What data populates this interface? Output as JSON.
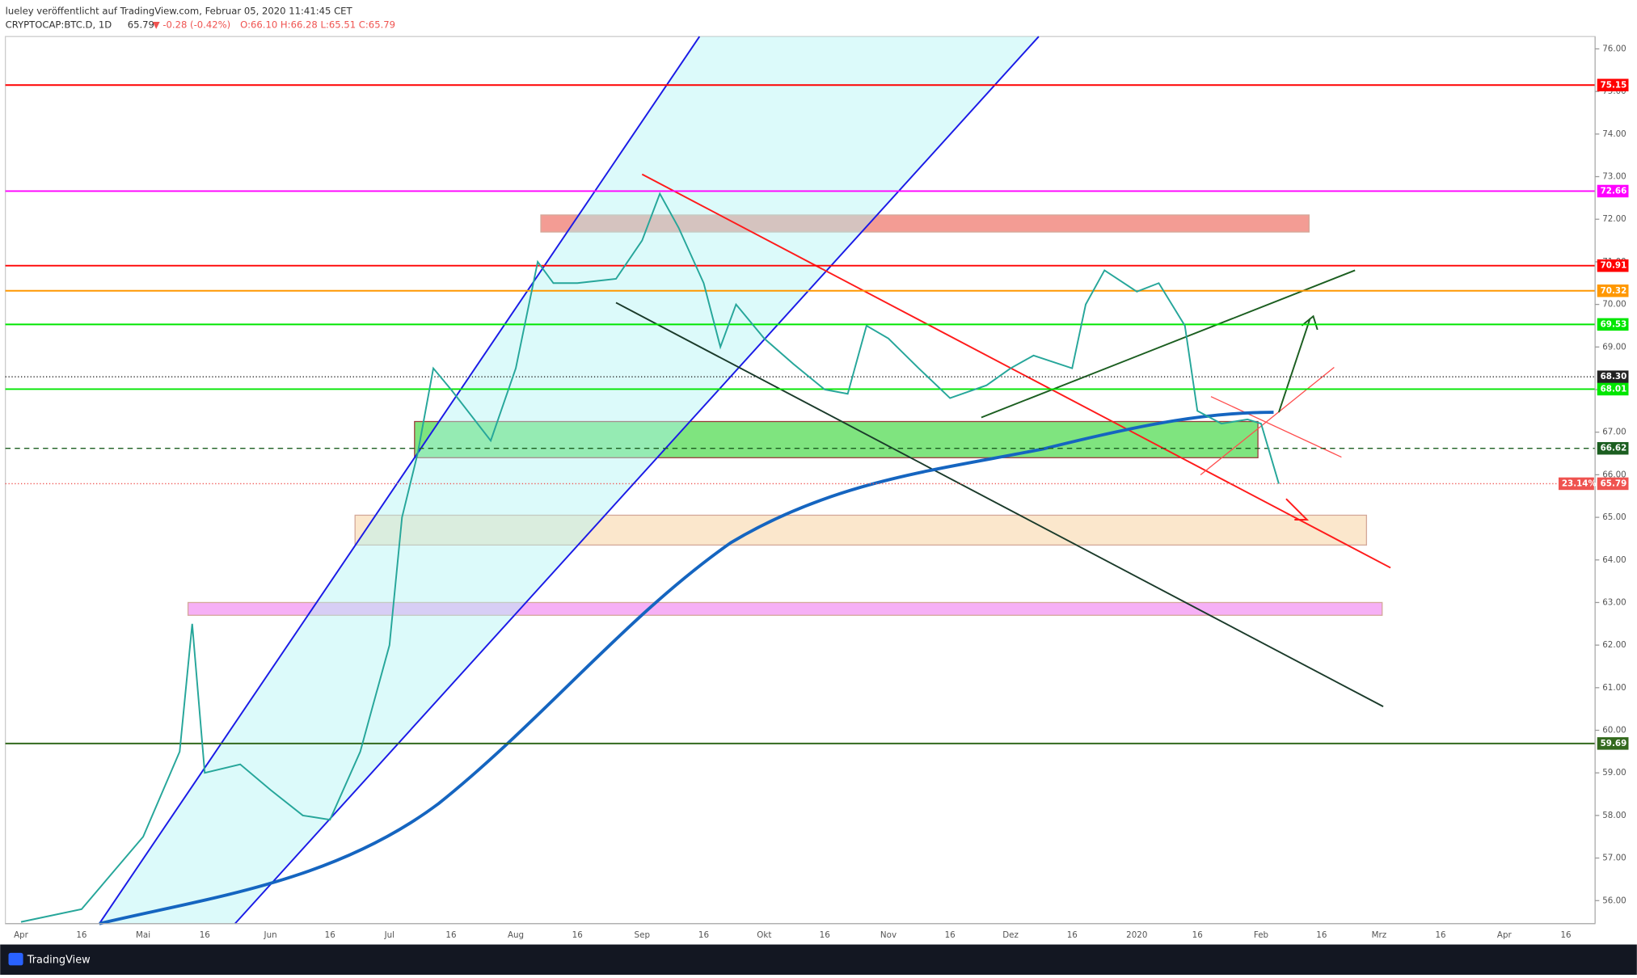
{
  "header": {
    "line1": "lueley veröffentlicht auf TradingView.com, Februar 05, 2020 11:41:45 CET",
    "symbol": "CRYPTOCAP:BTC.D, 1D",
    "last": "65.79",
    "change": "▼ -0.28 (-0.42%)",
    "ohlc": "O:66.10 H:66.28 L:65.51 C:65.79"
  },
  "chart_data": {
    "type": "line",
    "ylim": [
      55.46,
      76.29
    ],
    "yticks": [
      {
        "value": 56,
        "label": "56.00"
      },
      {
        "value": 57,
        "label": "57.00"
      },
      {
        "value": 58,
        "label": "58.00"
      },
      {
        "value": 59,
        "label": "59.00"
      },
      {
        "value": 60,
        "label": "60.00"
      },
      {
        "value": 61,
        "label": "61.00"
      },
      {
        "value": 62,
        "label": "62.00"
      },
      {
        "value": 63,
        "label": "63.00"
      },
      {
        "value": 64,
        "label": "64.00"
      },
      {
        "value": 65,
        "label": "65.00"
      },
      {
        "value": 66,
        "label": "66.00"
      },
      {
        "value": 67,
        "label": "67.00"
      },
      {
        "value": 68,
        "label": "68.00"
      },
      {
        "value": 69,
        "label": "69.00"
      },
      {
        "value": 70,
        "label": "70.00"
      },
      {
        "value": 71,
        "label": "71.00"
      },
      {
        "value": 72,
        "label": "72.00"
      },
      {
        "value": 73,
        "label": "73.00"
      },
      {
        "value": 74,
        "label": "74.00"
      },
      {
        "value": 75,
        "label": "75.00"
      },
      {
        "value": 76,
        "label": "76.00"
      }
    ],
    "x_labels": [
      "Apr",
      "16",
      "Mai",
      "16",
      "Jun",
      "16",
      "Jul",
      "16",
      "Aug",
      "16",
      "Sep",
      "16",
      "Okt",
      "16",
      "Nov",
      "16",
      "Dez",
      "16",
      "2020",
      "16",
      "Feb",
      "16",
      "Mrz",
      "16",
      "Apr",
      "16"
    ],
    "values": [
      55.5,
      55.8,
      57.5,
      59.5,
      62.5,
      59.0,
      59.2,
      58.6,
      58.0,
      57.9,
      59.5,
      62.0,
      65.0,
      66.5,
      68.5,
      68.0,
      66.8,
      68.5,
      71.0,
      70.5,
      70.5,
      70.6,
      71.5,
      72.6,
      71.8,
      70.5,
      69.0,
      70.0,
      69.2,
      68.6,
      68.0,
      67.9,
      69.5,
      69.2,
      68.5,
      67.8,
      68.1,
      68.5,
      68.8,
      68.5,
      70.0,
      70.8,
      70.3,
      70.5,
      69.5,
      67.5,
      67.2,
      67.3,
      67.2,
      65.79
    ],
    "color": "#26a69a",
    "levels": [
      {
        "value": 75.15,
        "label": "75.15",
        "color": "#ff0000",
        "style": "solid"
      },
      {
        "value": 72.66,
        "label": "72.66",
        "color": "#ff00ff",
        "style": "solid"
      },
      {
        "value": 70.91,
        "label": "70.91",
        "color": "#ff0000",
        "style": "solid"
      },
      {
        "value": 70.32,
        "label": "70.32",
        "color": "#ff9800",
        "style": "solid"
      },
      {
        "value": 69.53,
        "label": "69.53",
        "color": "#00e600",
        "style": "solid"
      },
      {
        "value": 68.3,
        "label": "68.30",
        "color": "#222222",
        "style": "dotted"
      },
      {
        "value": 68.01,
        "label": "68.01",
        "color": "#00e600",
        "style": "solid"
      },
      {
        "value": 66.62,
        "label": "66.62",
        "color": "#1b5e20",
        "style": "dashed"
      },
      {
        "value": 65.79,
        "label": "65.79",
        "note": "23.14%",
        "color": "#ef5350",
        "style": "dotted"
      },
      {
        "value": 59.69,
        "label": "59.69",
        "color": "#33691e",
        "style": "solid"
      }
    ],
    "zones": [
      {
        "from": 72.1,
        "to": 71.7,
        "color": "#f28b82"
      },
      {
        "from": 67.25,
        "to": 66.4,
        "color": "#69e069"
      },
      {
        "from": 65.05,
        "to": 64.35,
        "color": "#fbe3c4"
      },
      {
        "from": 63.0,
        "to": 62.7,
        "color": "#f5a3f5"
      }
    ]
  },
  "footer": "TradingView"
}
